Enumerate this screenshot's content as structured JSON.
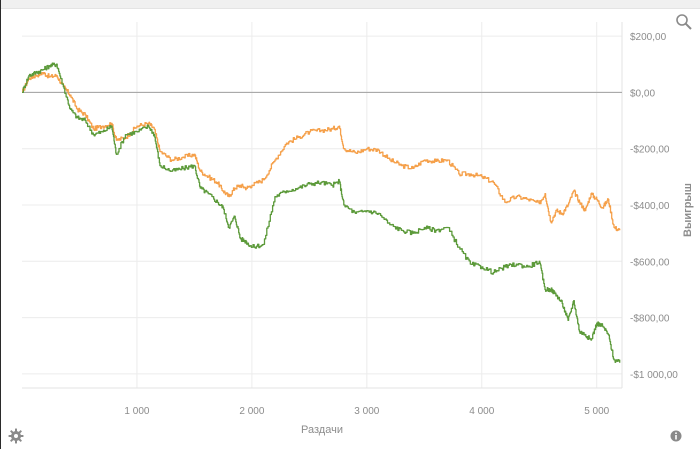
{
  "chart_data": {
    "type": "line",
    "title": "",
    "xlabel": "Раздачи",
    "ylabel": "Выигрыш",
    "xlim": [
      0,
      5220
    ],
    "ylim": [
      -1050,
      250
    ],
    "grid": true,
    "x_ticks": [
      {
        "value": 1000,
        "label": "1 000"
      },
      {
        "value": 2000,
        "label": "2 000"
      },
      {
        "value": 3000,
        "label": "3 000"
      },
      {
        "value": 4000,
        "label": "4 000"
      },
      {
        "value": 5000,
        "label": "5 000"
      }
    ],
    "y_ticks": [
      {
        "value": 200,
        "label": "$200,00"
      },
      {
        "value": 0,
        "label": "$0,00"
      },
      {
        "value": -200,
        "label": "-$200,00"
      },
      {
        "value": -400,
        "label": "-$400,00"
      },
      {
        "value": -600,
        "label": "-$600,00"
      },
      {
        "value": -800,
        "label": "-$800,00"
      },
      {
        "value": -1000,
        "label": "-$1 000,00"
      }
    ],
    "zero_line_color": "#a0a0a0",
    "series": [
      {
        "color": "#f5a04a",
        "x": [
          0,
          60,
          120,
          180,
          240,
          300,
          360,
          420,
          480,
          550,
          620,
          700,
          780,
          820,
          900,
          1000,
          1100,
          1150,
          1200,
          1300,
          1400,
          1500,
          1550,
          1620,
          1700,
          1750,
          1800,
          1850,
          1900,
          1950,
          2000,
          2100,
          2200,
          2300,
          2400,
          2500,
          2600,
          2700,
          2760,
          2800,
          2900,
          3000,
          3100,
          3200,
          3300,
          3400,
          3500,
          3600,
          3700,
          3800,
          3900,
          4000,
          4100,
          4200,
          4300,
          4400,
          4500,
          4550,
          4600,
          4650,
          4700,
          4750,
          4800,
          4850,
          4900,
          4950,
          5000,
          5050,
          5100,
          5150,
          5200
        ],
        "y": [
          0,
          50,
          60,
          70,
          55,
          60,
          20,
          -10,
          -60,
          -80,
          -130,
          -120,
          -110,
          -170,
          -160,
          -120,
          -110,
          -130,
          -210,
          -240,
          -230,
          -220,
          -280,
          -300,
          -320,
          -350,
          -370,
          -340,
          -330,
          -340,
          -330,
          -310,
          -240,
          -180,
          -160,
          -140,
          -135,
          -130,
          -120,
          -200,
          -215,
          -200,
          -205,
          -240,
          -260,
          -270,
          -240,
          -245,
          -240,
          -290,
          -290,
          -300,
          -320,
          -390,
          -370,
          -380,
          -395,
          -360,
          -460,
          -420,
          -430,
          -400,
          -350,
          -390,
          -420,
          -360,
          -380,
          -410,
          -380,
          -480,
          -490
        ]
      },
      {
        "color": "#5c9a3a",
        "x": [
          0,
          60,
          120,
          180,
          240,
          300,
          360,
          420,
          480,
          550,
          620,
          700,
          780,
          820,
          900,
          1000,
          1100,
          1150,
          1200,
          1300,
          1400,
          1500,
          1550,
          1620,
          1700,
          1750,
          1800,
          1850,
          1900,
          1950,
          2000,
          2100,
          2200,
          2300,
          2400,
          2500,
          2600,
          2700,
          2760,
          2800,
          2900,
          3000,
          3100,
          3200,
          3300,
          3400,
          3500,
          3600,
          3700,
          3800,
          3900,
          4000,
          4100,
          4200,
          4300,
          4400,
          4500,
          4550,
          4600,
          4650,
          4700,
          4750,
          4800,
          4850,
          4900,
          4950,
          5000,
          5050,
          5100,
          5150,
          5200
        ],
        "y": [
          0,
          60,
          70,
          80,
          95,
          100,
          20,
          -60,
          -90,
          -100,
          -150,
          -140,
          -120,
          -220,
          -150,
          -140,
          -120,
          -150,
          -260,
          -280,
          -270,
          -260,
          -340,
          -360,
          -390,
          -410,
          -480,
          -440,
          -520,
          -530,
          -550,
          -540,
          -370,
          -350,
          -340,
          -325,
          -320,
          -330,
          -315,
          -400,
          -430,
          -420,
          -430,
          -470,
          -490,
          -500,
          -480,
          -490,
          -480,
          -550,
          -610,
          -620,
          -640,
          -620,
          -610,
          -620,
          -600,
          -700,
          -700,
          -720,
          -750,
          -810,
          -740,
          -850,
          -860,
          -880,
          -820,
          -830,
          -860,
          -950,
          -960
        ]
      }
    ]
  },
  "controls": {
    "zoom_icon": "magnifier-icon",
    "settings_icon": "gear-icon",
    "info_icon": "info-icon"
  }
}
